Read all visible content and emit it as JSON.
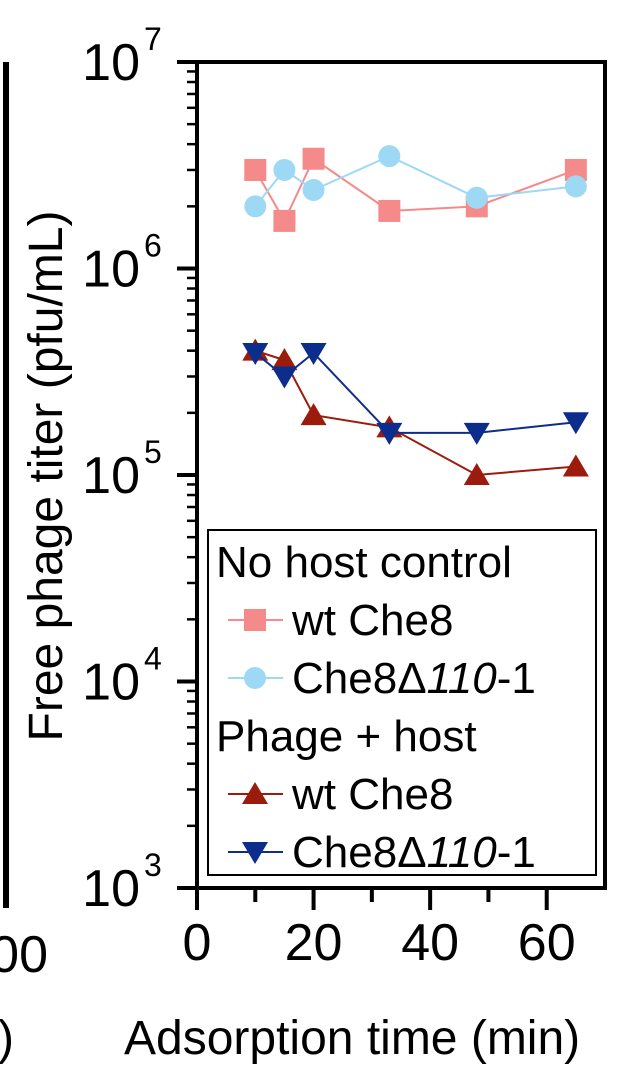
{
  "chart_data": {
    "type": "line",
    "xlabel": "Adsorption time (min)",
    "ylabel": "Free phage titer (pfu/mL)",
    "y_scale": "log",
    "xlim": [
      0,
      70
    ],
    "ylim": [
      1000,
      10000000
    ],
    "x_ticks": [
      0,
      20,
      40,
      60
    ],
    "x_minor_ticks": [
      10,
      30,
      50
    ],
    "y_ticks": [
      {
        "base": "10",
        "exp": "3",
        "value": 1000
      },
      {
        "base": "10",
        "exp": "4",
        "value": 10000
      },
      {
        "base": "10",
        "exp": "5",
        "value": 100000
      },
      {
        "base": "10",
        "exp": "6",
        "value": 1000000
      },
      {
        "base": "10",
        "exp": "7",
        "value": 10000000
      }
    ],
    "legend_placement": "lower-right",
    "legend_groups": [
      "No host control",
      "Phage + host"
    ],
    "series": [
      {
        "name": "wt Che8",
        "group": "No host control",
        "marker": "square",
        "color": "#f58a8a",
        "x": [
          10,
          15,
          20,
          33,
          48,
          65
        ],
        "y": [
          3000000,
          1700000,
          3400000,
          1900000,
          2000000,
          3000000
        ]
      },
      {
        "name_parts": [
          "Che8Δ",
          "110",
          "-1"
        ],
        "group": "No host control",
        "marker": "circle",
        "color": "#9dd8f5",
        "x": [
          10,
          15,
          20,
          33,
          48,
          65
        ],
        "y": [
          2000000,
          3000000,
          2400000,
          3500000,
          2200000,
          2500000
        ]
      },
      {
        "name": "wt Che8",
        "group": "Phage + host",
        "marker": "triangle-up",
        "color": "#9b1c0c",
        "x": [
          10,
          15,
          20,
          33,
          48,
          65
        ],
        "y": [
          400000,
          360000,
          195000,
          170000,
          100000,
          110000
        ]
      },
      {
        "name_parts": [
          "Che8Δ",
          "110",
          "-1"
        ],
        "group": "Phage + host",
        "marker": "triangle-down",
        "color": "#0d2d8c",
        "x": [
          10,
          15,
          20,
          33,
          48,
          65
        ],
        "y": [
          390000,
          300000,
          390000,
          160000,
          160000,
          180000
        ]
      }
    ],
    "left_panel_fragments": {
      "tick": "00",
      "label_end": ")"
    }
  }
}
